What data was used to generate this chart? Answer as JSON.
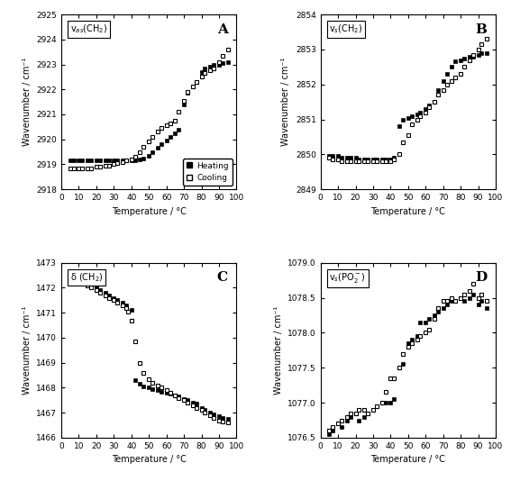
{
  "panel_A": {
    "title": "v$_{as}$(CH$_2$)",
    "label": "A",
    "xlabel": "Temperature / °C",
    "ylabel": "Wavenumber / cm⁻¹",
    "ylim": [
      2918,
      2925
    ],
    "xlim": [
      0,
      100
    ],
    "yticks": [
      2918,
      2919,
      2920,
      2921,
      2922,
      2923,
      2924,
      2925
    ],
    "xticks": [
      0,
      10,
      20,
      30,
      40,
      50,
      60,
      70,
      80,
      90,
      100
    ],
    "heating_x": [
      5,
      7,
      10,
      12,
      15,
      17,
      20,
      22,
      25,
      27,
      30,
      32,
      35,
      37,
      40,
      42,
      45,
      47,
      50,
      52,
      55,
      57,
      60,
      62,
      65,
      67,
      70,
      72,
      75,
      77,
      80,
      82,
      85,
      87,
      90,
      92,
      95
    ],
    "heating_y": [
      2919.15,
      2919.15,
      2919.15,
      2919.15,
      2919.15,
      2919.15,
      2919.15,
      2919.15,
      2919.15,
      2919.15,
      2919.15,
      2919.15,
      2919.15,
      2919.15,
      2919.15,
      2919.15,
      2919.2,
      2919.25,
      2919.35,
      2919.5,
      2919.65,
      2919.8,
      2919.95,
      2920.1,
      2920.25,
      2920.4,
      2921.4,
      2921.85,
      2922.1,
      2922.3,
      2922.7,
      2922.85,
      2922.9,
      2923.0,
      2923.0,
      2923.05,
      2923.1
    ],
    "cooling_x": [
      5,
      7,
      10,
      12,
      15,
      17,
      20,
      22,
      25,
      27,
      30,
      32,
      35,
      37,
      40,
      42,
      45,
      47,
      50,
      52,
      55,
      57,
      60,
      62,
      65,
      67,
      70,
      72,
      75,
      77,
      80,
      82,
      85,
      87,
      90,
      92,
      95
    ],
    "cooling_y": [
      2918.85,
      2918.85,
      2918.85,
      2918.85,
      2918.85,
      2918.85,
      2918.9,
      2918.9,
      2918.95,
      2918.95,
      2919.0,
      2919.05,
      2919.1,
      2919.15,
      2919.2,
      2919.3,
      2919.5,
      2919.7,
      2919.9,
      2920.1,
      2920.3,
      2920.45,
      2920.55,
      2920.65,
      2920.75,
      2921.1,
      2921.55,
      2921.9,
      2922.1,
      2922.3,
      2922.5,
      2922.65,
      2922.75,
      2922.85,
      2923.1,
      2923.35,
      2923.6
    ]
  },
  "panel_B": {
    "title": "v$_s$(CH$_2$)",
    "label": "B",
    "xlabel": "Temperature / °C",
    "ylabel": "Wavenumber / cm⁻¹",
    "ylim": [
      2849,
      2854
    ],
    "xlim": [
      0,
      100
    ],
    "yticks": [
      2849,
      2850,
      2851,
      2852,
      2853,
      2854
    ],
    "xticks": [
      0,
      10,
      20,
      30,
      40,
      50,
      60,
      70,
      80,
      90,
      100
    ],
    "heating_x": [
      5,
      7,
      10,
      12,
      15,
      17,
      20,
      22,
      25,
      27,
      30,
      32,
      35,
      37,
      40,
      42,
      45,
      47,
      50,
      52,
      55,
      57,
      60,
      62,
      65,
      67,
      70,
      72,
      75,
      77,
      80,
      82,
      85,
      87,
      90,
      92,
      95
    ],
    "heating_y": [
      2849.95,
      2849.95,
      2849.95,
      2849.9,
      2849.9,
      2849.9,
      2849.9,
      2849.85,
      2849.85,
      2849.85,
      2849.85,
      2849.85,
      2849.85,
      2849.85,
      2849.85,
      2849.9,
      2850.8,
      2851.0,
      2851.05,
      2851.1,
      2851.15,
      2851.2,
      2851.3,
      2851.4,
      2851.5,
      2851.85,
      2852.1,
      2852.3,
      2852.5,
      2852.65,
      2852.7,
      2852.75,
      2852.8,
      2852.8,
      2852.85,
      2852.9,
      2852.9
    ],
    "cooling_x": [
      5,
      7,
      10,
      12,
      15,
      17,
      20,
      22,
      25,
      27,
      30,
      32,
      35,
      37,
      40,
      42,
      45,
      47,
      50,
      52,
      55,
      57,
      60,
      62,
      65,
      67,
      70,
      72,
      75,
      77,
      80,
      82,
      85,
      87,
      90,
      92,
      95
    ],
    "cooling_y": [
      2849.9,
      2849.85,
      2849.85,
      2849.8,
      2849.8,
      2849.8,
      2849.8,
      2849.8,
      2849.8,
      2849.8,
      2849.8,
      2849.8,
      2849.8,
      2849.8,
      2849.8,
      2849.85,
      2850.0,
      2850.35,
      2850.55,
      2850.85,
      2851.0,
      2851.1,
      2851.2,
      2851.35,
      2851.5,
      2851.7,
      2851.85,
      2852.0,
      2852.1,
      2852.2,
      2852.3,
      2852.5,
      2852.7,
      2852.85,
      2853.0,
      2853.15,
      2853.3
    ]
  },
  "panel_C": {
    "title": "δ (CH$_2$)",
    "label": "C",
    "xlabel": "Temperature / °C",
    "ylabel": "Wavenumber / cm⁻¹",
    "ylim": [
      1466,
      1473
    ],
    "xlim": [
      0,
      100
    ],
    "yticks": [
      1466,
      1467,
      1468,
      1469,
      1470,
      1471,
      1472,
      1473
    ],
    "xticks": [
      0,
      10,
      20,
      30,
      40,
      50,
      60,
      70,
      80,
      90,
      100
    ],
    "heating_x": [
      5,
      7,
      10,
      12,
      15,
      17,
      20,
      22,
      25,
      27,
      30,
      32,
      35,
      37,
      40,
      42,
      45,
      47,
      50,
      52,
      55,
      57,
      60,
      62,
      65,
      67,
      70,
      72,
      75,
      77,
      80,
      82,
      85,
      87,
      90,
      92,
      95
    ],
    "heating_y": [
      1472.5,
      1472.45,
      1472.35,
      1472.3,
      1472.2,
      1472.1,
      1472.0,
      1471.9,
      1471.8,
      1471.7,
      1471.6,
      1471.5,
      1471.4,
      1471.3,
      1471.1,
      1468.3,
      1468.15,
      1468.05,
      1468.0,
      1467.95,
      1467.9,
      1467.85,
      1467.8,
      1467.75,
      1467.7,
      1467.65,
      1467.55,
      1467.5,
      1467.4,
      1467.35,
      1467.2,
      1467.1,
      1467.0,
      1466.95,
      1466.85,
      1466.8,
      1466.75
    ],
    "cooling_x": [
      5,
      7,
      10,
      12,
      15,
      17,
      20,
      22,
      25,
      27,
      30,
      32,
      35,
      37,
      38,
      40,
      42,
      45,
      47,
      50,
      52,
      55,
      57,
      60,
      62,
      65,
      67,
      70,
      72,
      75,
      77,
      80,
      82,
      85,
      87,
      90,
      92,
      95
    ],
    "cooling_y": [
      1472.45,
      1472.4,
      1472.3,
      1472.2,
      1472.1,
      1472.0,
      1471.9,
      1471.8,
      1471.7,
      1471.6,
      1471.5,
      1471.4,
      1471.3,
      1471.2,
      1471.05,
      1470.7,
      1469.85,
      1469.0,
      1468.6,
      1468.35,
      1468.2,
      1468.1,
      1468.0,
      1467.9,
      1467.8,
      1467.7,
      1467.6,
      1467.5,
      1467.4,
      1467.3,
      1467.2,
      1467.1,
      1467.0,
      1466.9,
      1466.8,
      1466.7,
      1466.65,
      1466.6
    ]
  },
  "panel_D": {
    "title": "v$_s$(PO$_2^-$)",
    "label": "D",
    "xlabel": "Temperature / °C",
    "ylabel": "Wavenumber / cm⁻¹",
    "ylim": [
      1076.5,
      1079.0
    ],
    "xlim": [
      0,
      100
    ],
    "yticks": [
      1076.5,
      1077.0,
      1077.5,
      1078.0,
      1078.5,
      1079.0
    ],
    "xticks": [
      0,
      10,
      20,
      30,
      40,
      50,
      60,
      70,
      80,
      90,
      100
    ],
    "heating_x": [
      5,
      7,
      10,
      12,
      15,
      17,
      20,
      22,
      25,
      27,
      30,
      32,
      35,
      37,
      40,
      42,
      45,
      47,
      50,
      52,
      55,
      57,
      60,
      62,
      65,
      67,
      70,
      72,
      75,
      77,
      80,
      82,
      85,
      87,
      90,
      92,
      95
    ],
    "heating_y": [
      1076.55,
      1076.6,
      1076.7,
      1076.65,
      1076.75,
      1076.8,
      1076.85,
      1076.75,
      1076.8,
      1076.85,
      1076.9,
      1076.95,
      1077.0,
      1077.0,
      1077.0,
      1077.05,
      1077.5,
      1077.55,
      1077.85,
      1077.9,
      1077.95,
      1078.15,
      1078.15,
      1078.2,
      1078.25,
      1078.3,
      1078.35,
      1078.4,
      1078.45,
      1078.45,
      1078.5,
      1078.45,
      1078.5,
      1078.55,
      1078.4,
      1078.45,
      1078.35
    ],
    "cooling_x": [
      5,
      7,
      10,
      12,
      15,
      17,
      20,
      22,
      25,
      27,
      30,
      32,
      35,
      37,
      40,
      42,
      45,
      47,
      50,
      52,
      55,
      57,
      60,
      62,
      65,
      67,
      70,
      72,
      75,
      77,
      80,
      82,
      85,
      87,
      90,
      92,
      95
    ],
    "cooling_y": [
      1076.6,
      1076.65,
      1076.7,
      1076.75,
      1076.8,
      1076.85,
      1076.85,
      1076.9,
      1076.9,
      1076.85,
      1076.9,
      1076.95,
      1077.0,
      1077.15,
      1077.35,
      1077.35,
      1077.5,
      1077.7,
      1077.8,
      1077.85,
      1077.9,
      1077.95,
      1078.0,
      1078.05,
      1078.2,
      1078.35,
      1078.45,
      1078.45,
      1078.5,
      1078.45,
      1078.5,
      1078.55,
      1078.6,
      1078.7,
      1078.5,
      1078.55,
      1078.45
    ]
  }
}
